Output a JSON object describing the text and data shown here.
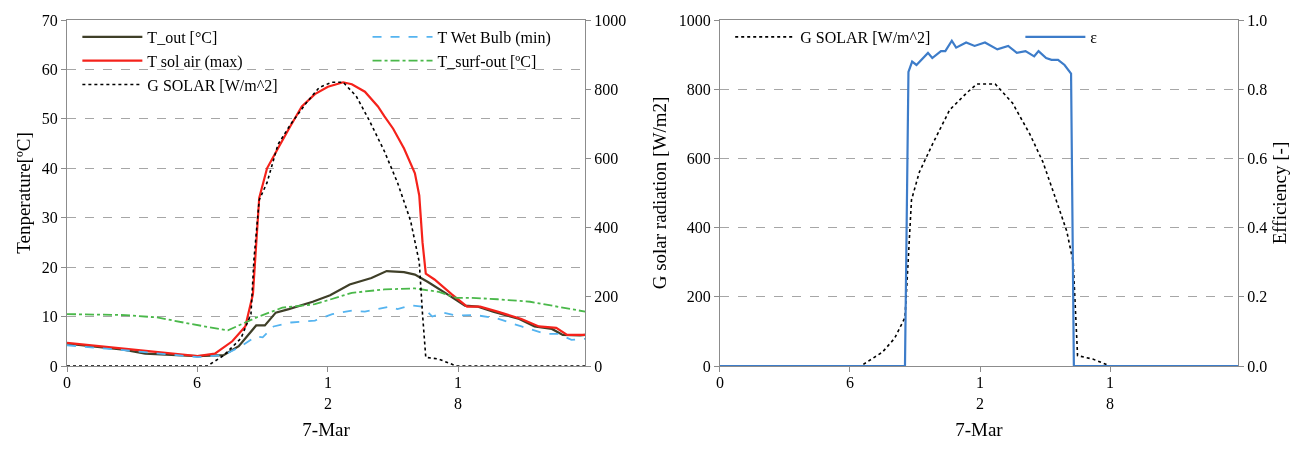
{
  "chart_data": [
    {
      "type": "line",
      "xlabel": "7-Mar",
      "ylabel": "Tenperature[ºC]",
      "xlim": [
        0,
        23.83
      ],
      "xticks": [
        0,
        6,
        12,
        18
      ],
      "ylim": [
        0,
        70
      ],
      "yticks": [
        0,
        10,
        20,
        30,
        40,
        50,
        60,
        70
      ],
      "y2lim": [
        0,
        1000
      ],
      "y2ticks": [
        0,
        200,
        400,
        600,
        800,
        1000
      ],
      "grid": "y",
      "legend": "top",
      "series": [
        {
          "name": "T_out [°C]",
          "color": "#3f3f28",
          "line_style": "solid",
          "x": [
            0,
            2.6,
            3.6,
            6,
            7.2,
            7.9,
            8.7,
            9.1,
            9.6,
            10.2,
            11.3,
            12.1,
            13,
            14,
            14.7,
            15.5,
            16,
            16.6,
            17.5,
            18.3,
            18.9,
            19.6,
            20.8,
            21.5,
            22.3,
            22.8,
            23.6,
            23.83
          ],
          "values": [
            4.5,
            3.3,
            2.5,
            2.0,
            2.2,
            4,
            8.2,
            8.2,
            10.8,
            11.5,
            13,
            14.3,
            16.5,
            17.8,
            19.2,
            19,
            18.5,
            17,
            14.5,
            12.2,
            12,
            11,
            9.5,
            8,
            7.5,
            6.3,
            6.2,
            6.3
          ]
        },
        {
          "name": "T sol air (max)",
          "color": "#f5221b",
          "line_style": "solid",
          "x": [
            0,
            2.6,
            6,
            6.8,
            7.6,
            8.2,
            8.55,
            8.84,
            9.2,
            9.7,
            10.27,
            10.8,
            11.4,
            12,
            12.7,
            13.1,
            13.7,
            14.3,
            14.6,
            15,
            15.5,
            16,
            16.2,
            16.35,
            16.5,
            16.9,
            17.7,
            18.4,
            19,
            19.8,
            20.9,
            21.7,
            22.5,
            23,
            23.83
          ],
          "values": [
            4.7,
            3.5,
            2,
            2.5,
            5,
            8,
            14.5,
            34,
            40,
            44,
            48.5,
            52.5,
            55,
            56.5,
            57.4,
            57,
            55.5,
            52.5,
            50.5,
            48,
            44,
            39,
            34.5,
            25,
            18.7,
            17.5,
            14.5,
            12,
            12,
            11,
            9.5,
            8,
            7.7,
            6.3,
            6.3
          ]
        },
        {
          "name": "G SOLAR [W/m^2]",
          "color": "#000000",
          "line_style": "dotted",
          "axis": "y2",
          "x": [
            0,
            6.45,
            7.2,
            8,
            8.46,
            8.6,
            8.84,
            9.2,
            9.7,
            10.3,
            11,
            11.6,
            12.17,
            12.7,
            13.3,
            13.9,
            14.6,
            15.2,
            15.8,
            16.2,
            16.35,
            16.5,
            17.1,
            17.9,
            23.83
          ],
          "values": [
            0,
            0,
            30,
            80,
            150,
            310,
            480,
            530,
            640,
            700,
            760,
            805,
            820,
            820,
            780,
            710,
            620,
            530,
            420,
            300,
            150,
            25,
            20,
            0,
            0
          ]
        },
        {
          "name": "T Wet Bulb (min)",
          "color": "#55b4f0",
          "line_style": "dashed",
          "x": [
            0,
            2.6,
            6,
            7.2,
            8,
            8.7,
            9,
            9.5,
            10.3,
            11.4,
            12.2,
            13.1,
            13.7,
            14.8,
            15.2,
            15.8,
            16.35,
            16.8,
            17.3,
            17.9,
            18.8,
            19.8,
            20.9,
            22,
            22.6,
            23.2,
            23.83
          ],
          "values": [
            4.2,
            3.2,
            1.8,
            2.2,
            4,
            6,
            5.8,
            8,
            8.8,
            9.2,
            10.5,
            11.2,
            11,
            12,
            11.5,
            12.3,
            12,
            10,
            10.8,
            10.2,
            10.3,
            9.6,
            8,
            6.5,
            6.5,
            5.3,
            5.5
          ]
        },
        {
          "name": "T_surf-out [ºC]",
          "color": "#4ab84a",
          "line_style": "dashdot",
          "x": [
            0,
            2.7,
            4.2,
            5.7,
            7.4,
            8.7,
            9.9,
            11.4,
            13.1,
            14.6,
            16,
            17.1,
            17.9,
            18.6,
            19.8,
            21.3,
            23.83
          ],
          "values": [
            10.5,
            10.3,
            9.8,
            8.5,
            7.2,
            9.8,
            11.8,
            12.5,
            14.8,
            15.5,
            15.7,
            15,
            13.8,
            13.8,
            13.5,
            13,
            11
          ]
        }
      ]
    },
    {
      "type": "line",
      "xlabel": "7-Mar",
      "ylabel": "G solar radiation [W/m2]",
      "y2label": "Efficiency [-]",
      "xlim": [
        0,
        23.9
      ],
      "xticks": [
        0,
        6,
        12,
        18
      ],
      "ylim": [
        0,
        1000
      ],
      "yticks": [
        0,
        200,
        400,
        600,
        800,
        1000
      ],
      "y2lim": [
        0,
        1.0
      ],
      "y2ticks": [
        {
          "value": 0,
          "label": "0.0"
        },
        0.2,
        0.4,
        0.6,
        0.8,
        {
          "value": 1,
          "label": "1.0"
        }
      ],
      "grid": "y",
      "legend": "top",
      "series": [
        {
          "name": "G SOLAR [W/m^2]",
          "color": "#000000",
          "line_style": "dotted",
          "x": [
            0,
            6.5,
            7.5,
            8.06,
            8.54,
            8.64,
            8.84,
            9.2,
            9.8,
            10.6,
            11.4,
            11.85,
            12.7,
            13.5,
            14.3,
            14.9,
            15.4,
            16,
            16.3,
            16.5,
            17.2,
            18,
            23.9
          ],
          "values": [
            0,
            0,
            40,
            80,
            140,
            250,
            480,
            560,
            640,
            740,
            790,
            815,
            815,
            760,
            670,
            590,
            500,
            390,
            300,
            30,
            20,
            0,
            0
          ]
        },
        {
          "name": "ε",
          "color": "#3d7cc9",
          "line_style": "solid",
          "axis": "y2",
          "x": [
            0,
            8.54,
            8.7,
            8.87,
            9.07,
            9.6,
            9.8,
            10.2,
            10.4,
            10.7,
            10.9,
            11.36,
            11.75,
            12.23,
            12.8,
            13.3,
            13.7,
            14.1,
            14.5,
            14.7,
            15.05,
            15.3,
            15.6,
            15.9,
            16.2,
            16.33,
            23.9
          ],
          "values": [
            0,
            0,
            0.85,
            0.88,
            0.87,
            0.905,
            0.89,
            0.91,
            0.91,
            0.94,
            0.92,
            0.935,
            0.925,
            0.935,
            0.915,
            0.925,
            0.905,
            0.91,
            0.895,
            0.91,
            0.89,
            0.885,
            0.885,
            0.87,
            0.845,
            0,
            0
          ]
        }
      ]
    }
  ]
}
